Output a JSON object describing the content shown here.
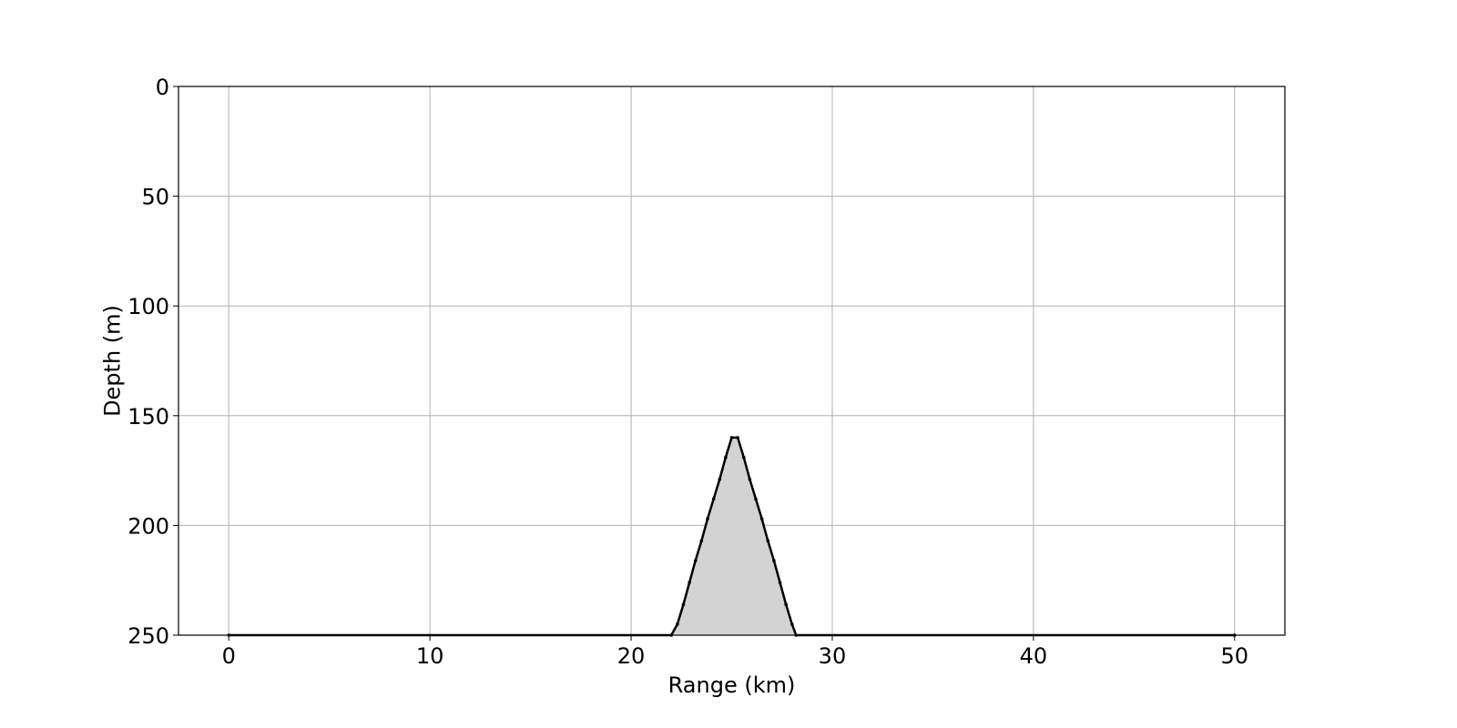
{
  "chart_data": {
    "type": "area",
    "xlabel": "Range (km)",
    "ylabel": "Depth (m)",
    "xlim": [
      -2.5,
      52.5
    ],
    "ylim": [
      250,
      0
    ],
    "y_inverted": true,
    "xticks": [
      0,
      10,
      20,
      30,
      40,
      50
    ],
    "yticks": [
      0,
      50,
      100,
      150,
      200,
      250
    ],
    "grid": true,
    "legend": "none",
    "fill_color": "#d3d3d3",
    "line_color": "#000000",
    "series": [
      {
        "x": [
          0,
          22.0,
          22.3,
          22.6,
          22.9,
          23.2,
          23.5,
          23.8,
          24.1,
          24.4,
          24.7,
          25.0,
          25.3,
          25.6,
          25.9,
          26.2,
          26.5,
          26.8,
          27.1,
          27.4,
          27.7,
          28.0,
          28.2,
          50
        ],
        "y": [
          250,
          250,
          245,
          236,
          226,
          216,
          207,
          197,
          188,
          179,
          169,
          160,
          160,
          169,
          179,
          188,
          197,
          207,
          216,
          226,
          236,
          245,
          250,
          250
        ]
      }
    ]
  }
}
